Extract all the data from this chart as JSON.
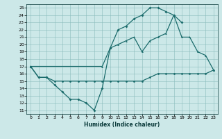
{
  "xlabel": "Humidex (Indice chaleur)",
  "bg_color": "#cce8e8",
  "grid_color": "#8abcbc",
  "line_color": "#1a6b6b",
  "xlim": [
    -0.5,
    23.5
  ],
  "ylim": [
    10.5,
    25.5
  ],
  "xticks": [
    0,
    1,
    2,
    3,
    4,
    5,
    6,
    7,
    8,
    9,
    10,
    11,
    12,
    13,
    14,
    15,
    16,
    17,
    18,
    19,
    20,
    21,
    22,
    23
  ],
  "yticks": [
    11,
    12,
    13,
    14,
    15,
    16,
    17,
    18,
    19,
    20,
    21,
    22,
    23,
    24,
    25
  ],
  "series1_x": [
    0,
    1,
    2,
    3,
    4,
    5,
    6,
    7,
    8,
    9,
    10,
    11,
    12,
    13,
    14,
    15,
    16,
    17,
    18,
    19,
    20,
    21,
    22,
    23
  ],
  "series1_y": [
    17,
    15.5,
    15.5,
    15,
    15,
    15,
    15,
    15,
    15,
    15,
    15,
    15,
    15,
    15,
    15,
    15.5,
    16,
    16,
    16,
    16,
    16,
    16,
    16,
    16.5
  ],
  "series2_x": [
    0,
    1,
    2,
    3,
    4,
    5,
    6,
    7,
    8,
    9,
    10,
    11,
    12,
    13,
    14,
    15,
    16,
    17,
    18,
    19,
    20,
    21,
    22,
    23
  ],
  "series2_y": [
    17,
    15.5,
    15.5,
    14.5,
    13.5,
    12.5,
    12.5,
    12,
    11,
    14,
    19.5,
    22,
    22.5,
    23.5,
    24,
    25,
    25,
    24.5,
    24,
    23,
    null,
    null,
    null,
    null
  ],
  "series3_x": [
    0,
    9,
    10,
    11,
    12,
    13,
    14,
    15,
    16,
    17,
    18,
    19,
    20,
    21,
    22,
    23
  ],
  "series3_y": [
    17,
    17,
    19.5,
    20,
    20.5,
    21,
    19,
    20.5,
    21,
    21.5,
    24,
    21,
    21,
    19,
    18.5,
    16.5
  ]
}
